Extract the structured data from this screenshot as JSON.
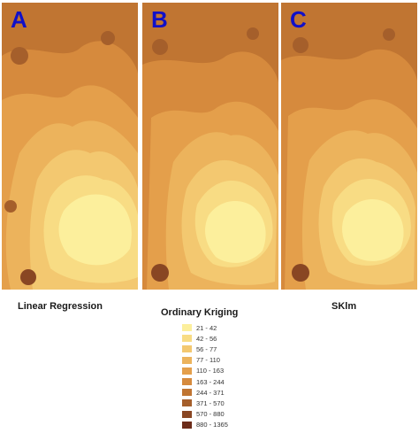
{
  "panels": [
    {
      "letter": "A",
      "caption": "Linear Regression"
    },
    {
      "letter": "B",
      "caption": "Ordinary Kriging"
    },
    {
      "letter": "C",
      "caption": "SKlm"
    }
  ],
  "legend": {
    "classes": [
      {
        "label": "21 - 42",
        "color": "#fcef9c"
      },
      {
        "label": "42 - 56",
        "color": "#f8dc84"
      },
      {
        "label": "56 - 77",
        "color": "#f3c870"
      },
      {
        "label": "77 - 110",
        "color": "#ecb35c"
      },
      {
        "label": "110 - 163",
        "color": "#e49f4b"
      },
      {
        "label": "163 - 244",
        "color": "#d68a3d"
      },
      {
        "label": "244 - 371",
        "color": "#c07532"
      },
      {
        "label": "371 - 570",
        "color": "#a55f2b"
      },
      {
        "label": "570 - 880",
        "color": "#894623"
      },
      {
        "label": "880 - 1365",
        "color": "#6c2c1a"
      }
    ]
  },
  "colors": {
    "letter": "#1010c8"
  }
}
